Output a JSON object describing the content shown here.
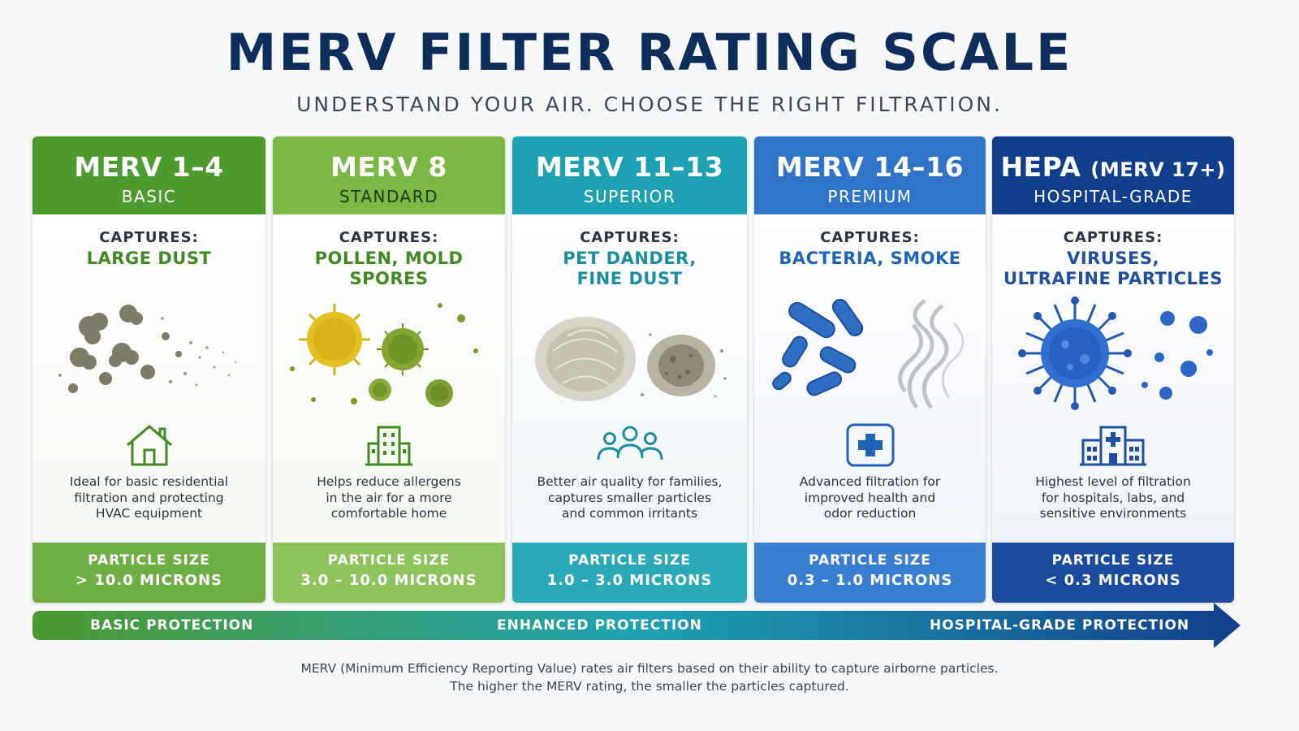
{
  "header": {
    "title": "MERV FILTER RATING SCALE",
    "subtitle": "UNDERSTAND YOUR AIR. CHOOSE THE RIGHT FILTRATION."
  },
  "cards": [
    {
      "level": "MERV 1–4",
      "level_suffix": "",
      "tier": "BASIC",
      "captures_label": "CAPTURES:",
      "captures": "LARGE DUST",
      "captures_line2": "",
      "description": [
        "Ideal for basic residential",
        "filtration and protecting",
        "HVAC equipment"
      ],
      "particle_label": "PARTICLE SIZE",
      "particle_value": "> 10.0 MICRONS",
      "icon": "house-icon",
      "header_color": "#4d9a2f",
      "footer_color": "#6fae44",
      "accent_color": "#3f8a22"
    },
    {
      "level": "MERV 8",
      "level_suffix": "",
      "tier": "STANDARD",
      "captures_label": "CAPTURES:",
      "captures": "POLLEN, MOLD SPORES",
      "captures_line2": "",
      "description": [
        "Helps reduce allergens",
        "in the air for a more",
        "comfortable home"
      ],
      "particle_label": "PARTICLE SIZE",
      "particle_value": "3.0 – 10.0 MICRONS",
      "icon": "apartment-building-icon",
      "header_color": "#7ab844",
      "footer_color": "#8dc25c",
      "accent_color": "#3f8a22"
    },
    {
      "level": "MERV 11–13",
      "level_suffix": "",
      "tier": "SUPERIOR",
      "captures_label": "CAPTURES:",
      "captures": "PET DANDER,",
      "captures_line2": "FINE DUST",
      "description": [
        "Better air quality for families,",
        "captures smaller particles",
        "and common irritants"
      ],
      "particle_label": "PARTICLE SIZE",
      "particle_value": "1.0 – 3.0 MICRONS",
      "icon": "family-icon",
      "header_color": "#1ea2b3",
      "footer_color": "#2aa9b8",
      "accent_color": "#1a8ea1"
    },
    {
      "level": "MERV 14–16",
      "level_suffix": "",
      "tier": "PREMIUM",
      "captures_label": "CAPTURES:",
      "captures": "BACTERIA, SMOKE",
      "captures_line2": "",
      "description": [
        "Advanced filtration for",
        "improved health and",
        "odor reduction"
      ],
      "particle_label": "PARTICLE SIZE",
      "particle_value": "0.3 – 1.0 MICRONS",
      "icon": "medical-cross-icon",
      "header_color": "#2f74c7",
      "footer_color": "#3a7fcf",
      "accent_color": "#1f63b5"
    },
    {
      "level": "HEPA",
      "level_suffix": "(MERV 17+)",
      "tier": "HOSPITAL-GRADE",
      "captures_label": "CAPTURES:",
      "captures": "VIRUSES,",
      "captures_line2": "ULTRAFINE PARTICLES",
      "description": [
        "Highest level of filtration",
        "for hospitals, labs, and",
        "sensitive environments"
      ],
      "particle_label": "PARTICLE SIZE",
      "particle_value": "< 0.3 MICRONS",
      "icon": "hospital-icon",
      "header_color": "#123f8c",
      "footer_color": "#1a4b9c",
      "accent_color": "#1f4f9e"
    }
  ],
  "protection_arrow": {
    "labels": [
      "BASIC PROTECTION",
      "ENHANCED PROTECTION",
      "HOSPITAL-GRADE PROTECTION"
    ],
    "start_color": "#4d9a2f",
    "mid_color": "#1ea2b3",
    "end_color": "#123f8c"
  },
  "footnote": {
    "line1": "MERV (Minimum Efficiency Reporting Value) rates air filters based on their ability to capture airborne particles.",
    "line2": "The higher the MERV rating, the smaller the particles captured."
  }
}
